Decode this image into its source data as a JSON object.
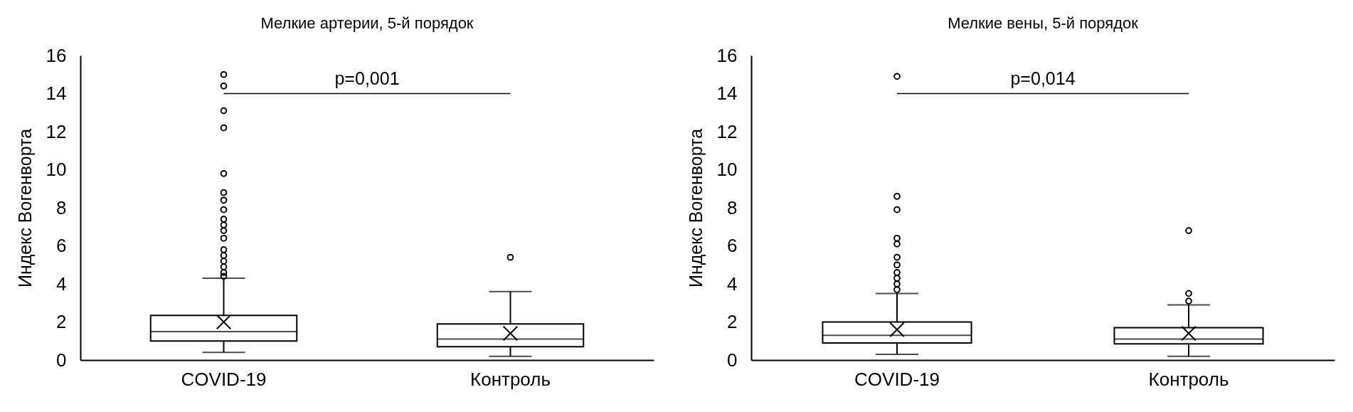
{
  "chart_data": [
    {
      "type": "box",
      "title": "Мелкие артерии, 5-й порядок",
      "ylabel": "Индекс Вогенворта",
      "categories": [
        "COVID-19",
        "Контроль"
      ],
      "series": [
        {
          "color": "#000000",
          "boxes": [
            {
              "low": 0.4,
              "q1": 1.0,
              "median": 1.5,
              "q3": 2.35,
              "high": 4.3,
              "mean": 2.0,
              "outliers": [
                4.4,
                4.6,
                4.9,
                5.2,
                5.5,
                5.8,
                6.4,
                6.8,
                7.1,
                7.4,
                7.9,
                8.4,
                8.8,
                9.8,
                12.2,
                13.1,
                14.4,
                15.0
              ]
            },
            {
              "low": 0.2,
              "q1": 0.7,
              "median": 1.1,
              "q3": 1.9,
              "high": 3.6,
              "mean": 1.4,
              "outliers": [
                5.4
              ]
            }
          ]
        }
      ],
      "ylim": [
        0,
        16
      ],
      "yticks": [
        0,
        2,
        4,
        6,
        8,
        10,
        12,
        14,
        16
      ],
      "annotations": [
        "p=0,001"
      ]
    },
    {
      "type": "box",
      "title": "Мелкие вены, 5-й порядок",
      "ylabel": "Индекс Вогенворта",
      "categories": [
        "COVID-19",
        "Контроль"
      ],
      "series": [
        {
          "color": "#000000",
          "boxes": [
            {
              "low": 0.3,
              "q1": 0.9,
              "median": 1.3,
              "q3": 2.0,
              "high": 3.5,
              "mean": 1.6,
              "outliers": [
                3.7,
                4.0,
                4.3,
                4.6,
                5.0,
                5.4,
                6.1,
                6.4,
                7.9,
                8.6,
                14.9
              ]
            },
            {
              "low": 0.2,
              "q1": 0.85,
              "median": 1.1,
              "q3": 1.7,
              "high": 2.9,
              "mean": 1.4,
              "outliers": [
                3.1,
                3.5,
                6.8
              ]
            }
          ]
        }
      ],
      "ylim": [
        0,
        16
      ],
      "yticks": [
        0,
        2,
        4,
        6,
        8,
        10,
        12,
        14,
        16
      ],
      "annotations": [
        "p=0,014"
      ]
    }
  ]
}
